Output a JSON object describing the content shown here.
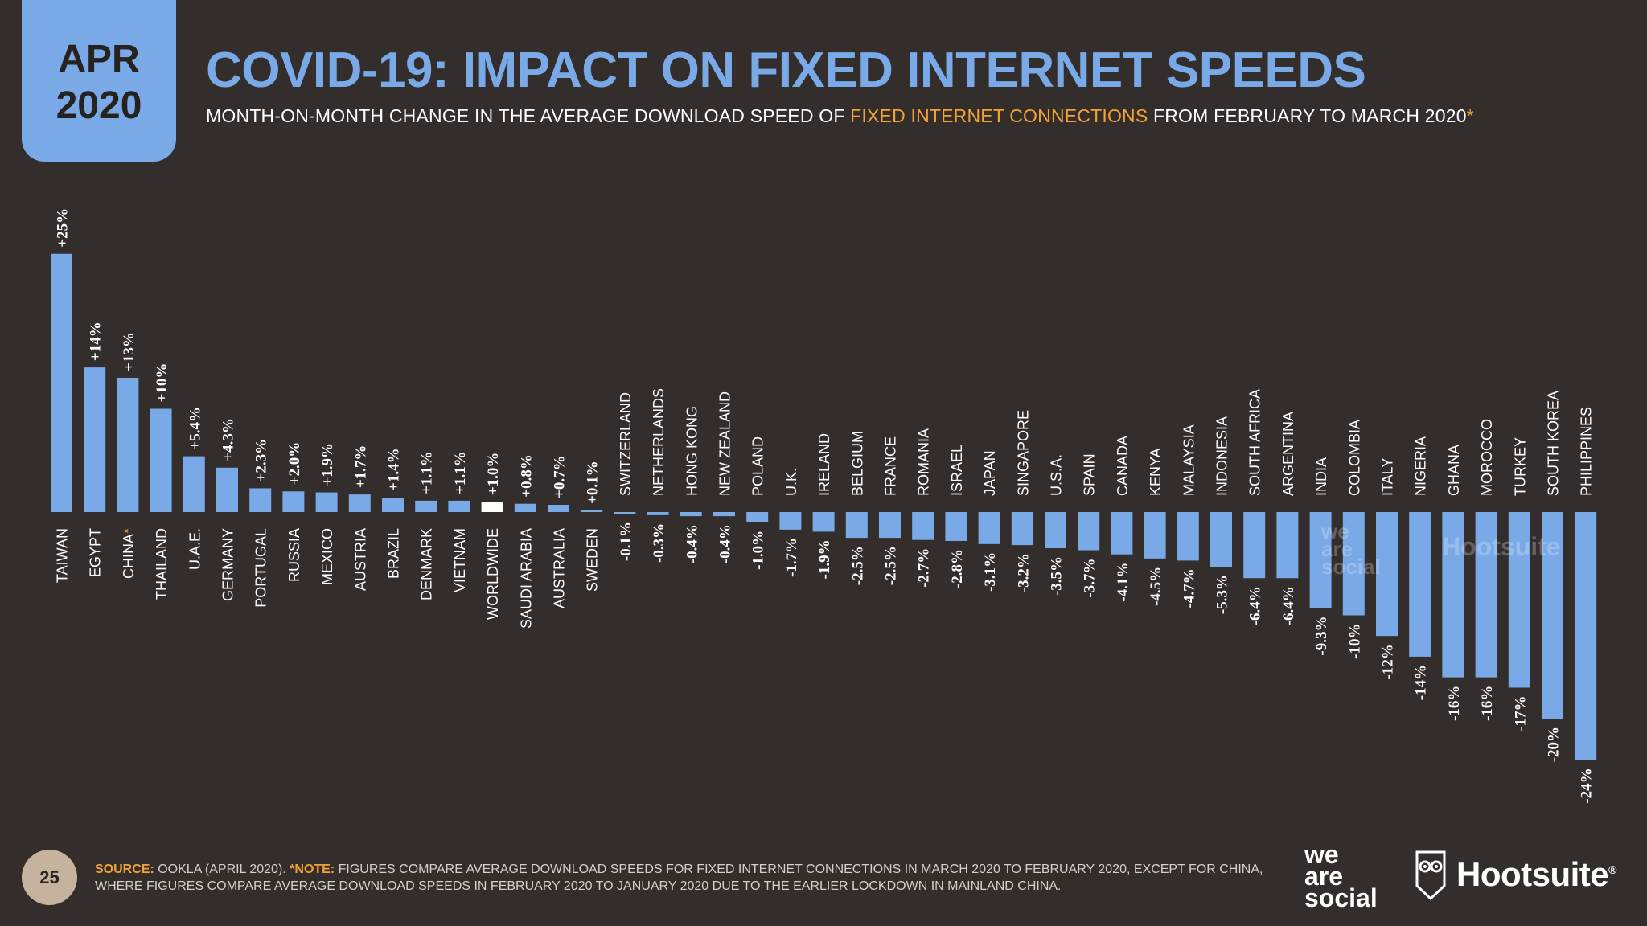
{
  "badge": {
    "month": "APR",
    "year": "2020"
  },
  "header": {
    "title": "COVID-19: IMPACT ON FIXED INTERNET SPEEDS",
    "subtitle_before": "MONTH-ON-MONTH CHANGE IN THE AVERAGE DOWNLOAD SPEED OF ",
    "subtitle_highlight": "FIXED INTERNET CONNECTIONS",
    "subtitle_after": " FROM FEBRUARY TO MARCH 2020",
    "subtitle_mark": "*"
  },
  "colors": {
    "bar": "#79a9e6",
    "highlight_bar": "#ffffff",
    "background": "#332d2b",
    "accent": "#f3a234"
  },
  "chart_data": {
    "type": "bar",
    "unit": "%",
    "categories": [
      "TAIWAN",
      "EGYPT",
      "CHINA",
      "THAILAND",
      "U.A.E.",
      "GERMANY",
      "PORTUGAL",
      "RUSSIA",
      "MEXICO",
      "AUSTRIA",
      "BRAZIL",
      "DENMARK",
      "VIETNAM",
      "WORLDWIDE",
      "SAUDI ARABIA",
      "AUSTRALIA",
      "SWEDEN",
      "SWITZERLAND",
      "NETHERLANDS",
      "HONG KONG",
      "NEW ZEALAND",
      "POLAND",
      "U.K.",
      "IRELAND",
      "BELGIUM",
      "FRANCE",
      "ROMANIA",
      "ISRAEL",
      "JAPAN",
      "SINGAPORE",
      "U.S.A.",
      "SPAIN",
      "CANADA",
      "KENYA",
      "MALAYSIA",
      "INDONESIA",
      "SOUTH AFRICA",
      "ARGENTINA",
      "INDIA",
      "COLOMBIA",
      "ITALY",
      "NIGERIA",
      "GHANA",
      "MOROCCO",
      "TURKEY",
      "SOUTH KOREA",
      "PHILIPPINES"
    ],
    "values": [
      25,
      14,
      13,
      10,
      5.4,
      4.3,
      2.3,
      2.0,
      1.9,
      1.7,
      1.4,
      1.1,
      1.1,
      1.0,
      0.8,
      0.7,
      0.1,
      -0.1,
      -0.3,
      -0.4,
      -0.4,
      -1.0,
      -1.7,
      -1.9,
      -2.5,
      -2.5,
      -2.7,
      -2.8,
      -3.1,
      -3.2,
      -3.5,
      -3.7,
      -4.1,
      -4.5,
      -4.7,
      -5.3,
      -6.4,
      -6.4,
      -9.3,
      -10,
      -12,
      -14,
      -16,
      -16,
      -17,
      -20,
      -24
    ],
    "labels": [
      "+25%",
      "+14%",
      "+13%",
      "+10%",
      "+5.4%",
      "+4.3%",
      "+2.3%",
      "+2.0%",
      "+1.9%",
      "+1.7%",
      "+1.4%",
      "+1.1%",
      "+1.1%",
      "+1.0%",
      "+0.8%",
      "+0.7%",
      "+0.1%",
      "-0.1%",
      "-0.3%",
      "-0.4%",
      "-0.4%",
      "-1.0%",
      "-1.7%",
      "-1.9%",
      "-2.5%",
      "-2.5%",
      "-2.7%",
      "-2.8%",
      "-3.1%",
      "-3.2%",
      "-3.5%",
      "-3.7%",
      "-4.1%",
      "-4.5%",
      "-4.7%",
      "-5.3%",
      "-6.4%",
      "-6.4%",
      "-9.3%",
      "-10%",
      "-12%",
      "-14%",
      "-16%",
      "-16%",
      "-17%",
      "-20%",
      "-24%"
    ],
    "highlight_category": "WORLDWIDE",
    "asterisk_category": "CHINA",
    "ylim": [
      -24,
      25
    ],
    "grid": false,
    "legend": "none"
  },
  "footer": {
    "page_number": "25",
    "source_label": "SOURCE:",
    "source_text": " OOKLA (APRIL 2020). ",
    "note_label": "*NOTE:",
    "note_text": " FIGURES COMPARE AVERAGE DOWNLOAD SPEEDS FOR FIXED INTERNET CONNECTIONS IN MARCH 2020 TO FEBRUARY 2020, EXCEPT FOR CHINA, WHERE FIGURES COMPARE AVERAGE DOWNLOAD SPEEDS IN FEBRUARY 2020 TO JANUARY 2020 DUE TO THE EARLIER LOCKDOWN IN MAINLAND CHINA."
  },
  "brands": {
    "was_line1": "we",
    "was_line2": "are",
    "was_line3": "social",
    "hootsuite": "Hootsuite",
    "hootsuite_mark": "®"
  }
}
